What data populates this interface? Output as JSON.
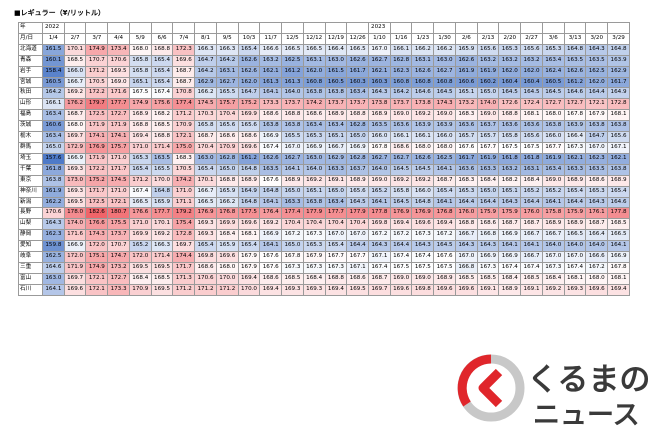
{
  "header": {
    "title": "■レギュラー（¥/リットル）",
    "year_label": "年",
    "date_label": "月/日"
  },
  "table": {
    "columns": [
      {
        "year": "2022",
        "date": "1/4"
      },
      {
        "date": "2/7"
      },
      {
        "date": "3/7"
      },
      {
        "date": "4/4"
      },
      {
        "date": "5/9"
      },
      {
        "date": "6/6"
      },
      {
        "date": "7/4"
      },
      {
        "date": "8/1"
      },
      {
        "date": "9/5"
      },
      {
        "date": "10/3"
      },
      {
        "date": "11/7"
      },
      {
        "date": "12/5"
      },
      {
        "date": "12/12"
      },
      {
        "date": "12/19"
      },
      {
        "date": "12/26"
      },
      {
        "year": "2023",
        "date": "1/10"
      },
      {
        "date": "1/16"
      },
      {
        "date": "1/23"
      },
      {
        "date": "1/30"
      },
      {
        "date": "2/6"
      },
      {
        "date": "2/13"
      },
      {
        "date": "2/20"
      },
      {
        "date": "2/27"
      },
      {
        "date": "3/6"
      },
      {
        "date": "3/13"
      },
      {
        "date": "3/20"
      },
      {
        "date": "3/29"
      }
    ],
    "rows": [
      {
        "name": "北海道",
        "values": [
          "161.5",
          "170.1",
          "174.9",
          "173.4",
          "168.0",
          "168.8",
          "172.3",
          "166.3",
          "166.3",
          "165.4",
          "166.6",
          "166.5",
          "166.5",
          "166.4",
          "166.5",
          "167.0",
          "166.1",
          "166.2",
          "166.2",
          "165.9",
          "165.6",
          "165.3",
          "165.6",
          "165.3",
          "164.8",
          "164.3",
          "164.8"
        ]
      },
      {
        "name": "青森",
        "values": [
          "160.1",
          "168.5",
          "170.7",
          "170.6",
          "165.8",
          "165.4",
          "169.6",
          "164.7",
          "164.2",
          "162.6",
          "163.2",
          "162.5",
          "163.1",
          "163.0",
          "162.6",
          "162.7",
          "162.8",
          "163.1",
          "163.0",
          "162.6",
          "163.2",
          "163.2",
          "163.2",
          "163.4",
          "163.5",
          "163.5",
          "163.9"
        ]
      },
      {
        "name": "岩手",
        "values": [
          "158.4",
          "166.0",
          "171.2",
          "169.5",
          "165.8",
          "165.4",
          "168.7",
          "164.2",
          "163.1",
          "162.6",
          "162.1",
          "161.2",
          "162.0",
          "161.5",
          "161.7",
          "162.1",
          "162.3",
          "162.6",
          "162.7",
          "161.9",
          "161.9",
          "162.0",
          "162.0",
          "162.4",
          "162.6",
          "162.5",
          "162.9"
        ]
      },
      {
        "name": "宮城",
        "values": [
          "160.5",
          "166.7",
          "170.5",
          "169.0",
          "165.1",
          "165.4",
          "168.7",
          "162.9",
          "162.7",
          "162.0",
          "161.3",
          "161.3",
          "160.8",
          "160.5",
          "160.3",
          "160.3",
          "160.8",
          "160.8",
          "160.8",
          "160.6",
          "160.2",
          "160.4",
          "160.4",
          "160.5",
          "161.2",
          "162.0",
          "161.7"
        ]
      },
      {
        "name": "秋田",
        "values": [
          "164.2",
          "169.2",
          "172.2",
          "171.6",
          "167.5",
          "167.4",
          "170.8",
          "166.2",
          "165.5",
          "164.7",
          "164.1",
          "164.0",
          "163.8",
          "163.8",
          "163.4",
          "164.3",
          "164.2",
          "164.6",
          "164.5",
          "165.1",
          "165.0",
          "164.5",
          "164.5",
          "164.5",
          "164.6",
          "164.4",
          "164.9"
        ]
      },
      {
        "name": "山形",
        "values": [
          "166.1",
          "176.2",
          "179.7",
          "177.7",
          "174.9",
          "175.6",
          "177.4",
          "174.5",
          "175.7",
          "175.2",
          "173.3",
          "173.7",
          "174.2",
          "173.7",
          "173.7",
          "173.8",
          "173.7",
          "173.8",
          "174.3",
          "173.2",
          "174.0",
          "172.6",
          "172.4",
          "172.7",
          "172.7",
          "172.1",
          "172.8"
        ]
      },
      {
        "name": "福島",
        "values": [
          "163.4",
          "168.7",
          "172.5",
          "172.7",
          "168.9",
          "168.2",
          "171.2",
          "170.3",
          "170.4",
          "169.9",
          "168.6",
          "168.8",
          "168.6",
          "168.9",
          "168.8",
          "168.9",
          "169.0",
          "169.2",
          "169.0",
          "168.3",
          "169.0",
          "168.8",
          "168.1",
          "168.0",
          "167.8",
          "167.9",
          "168.1"
        ]
      },
      {
        "name": "茨城",
        "values": [
          "160.6",
          "168.0",
          "171.9",
          "171.9",
          "168.8",
          "168.5",
          "170.9",
          "165.8",
          "165.6",
          "165.6",
          "163.8",
          "163.8",
          "163.4",
          "163.4",
          "162.8",
          "163.5",
          "163.6",
          "163.9",
          "163.9",
          "163.6",
          "163.7",
          "163.6",
          "163.6",
          "163.8",
          "163.9",
          "163.8",
          "163.8"
        ]
      },
      {
        "name": "栃木",
        "values": [
          "163.4",
          "169.7",
          "174.1",
          "174.1",
          "169.4",
          "168.8",
          "172.1",
          "168.7",
          "168.6",
          "168.6",
          "166.9",
          "165.5",
          "165.3",
          "165.1",
          "165.0",
          "166.0",
          "166.1",
          "166.1",
          "166.0",
          "165.7",
          "165.7",
          "165.8",
          "165.6",
          "166.0",
          "166.4",
          "164.7",
          "165.6"
        ]
      },
      {
        "name": "群馬",
        "values": [
          "165.0",
          "172.9",
          "176.9",
          "175.7",
          "171.0",
          "171.4",
          "175.0",
          "170.4",
          "170.9",
          "169.6",
          "167.4",
          "167.0",
          "166.9",
          "166.7",
          "166.9",
          "167.8",
          "168.6",
          "168.0",
          "168.0",
          "167.6",
          "167.7",
          "167.5",
          "167.5",
          "167.7",
          "167.3",
          "167.0",
          "167.1"
        ]
      },
      {
        "name": "埼玉",
        "values": [
          "157.6",
          "166.9",
          "171.9",
          "171.0",
          "165.3",
          "163.5",
          "168.3",
          "163.0",
          "162.8",
          "161.2",
          "162.6",
          "162.7",
          "163.0",
          "162.9",
          "162.8",
          "162.7",
          "162.7",
          "162.6",
          "162.5",
          "161.7",
          "161.9",
          "161.8",
          "161.8",
          "161.9",
          "162.1",
          "162.3",
          "162.1"
        ]
      },
      {
        "name": "千葉",
        "values": [
          "161.8",
          "169.3",
          "172.2",
          "171.7",
          "165.4",
          "165.5",
          "170.5",
          "165.4",
          "165.0",
          "164.8",
          "163.5",
          "164.1",
          "164.0",
          "163.3",
          "163.7",
          "164.0",
          "164.5",
          "164.5",
          "164.1",
          "163.6",
          "163.3",
          "163.2",
          "163.1",
          "163.4",
          "163.3",
          "163.5",
          "163.8"
        ]
      },
      {
        "name": "東京",
        "values": [
          "163.8",
          "173.0",
          "175.2",
          "174.5",
          "171.2",
          "170.0",
          "174.2",
          "170.1",
          "168.8",
          "168.9",
          "167.6",
          "168.9",
          "169.2",
          "169.1",
          "168.9",
          "169.0",
          "169.2",
          "169.2",
          "168.7",
          "168.3",
          "168.4",
          "168.2",
          "168.4",
          "169.0",
          "168.9",
          "168.6",
          "168.9"
        ]
      },
      {
        "name": "神奈川",
        "values": [
          "161.9",
          "169.3",
          "171.7",
          "171.0",
          "167.4",
          "164.8",
          "171.0",
          "166.7",
          "165.9",
          "164.9",
          "164.8",
          "165.0",
          "165.1",
          "165.0",
          "165.6",
          "165.2",
          "165.8",
          "166.0",
          "165.4",
          "165.3",
          "165.0",
          "165.1",
          "165.2",
          "165.2",
          "165.4",
          "165.3",
          "165.4"
        ]
      },
      {
        "name": "新潟",
        "values": [
          "162.2",
          "169.5",
          "172.5",
          "172.1",
          "166.5",
          "165.9",
          "171.1",
          "166.5",
          "166.2",
          "164.8",
          "164.1",
          "163.3",
          "163.8",
          "163.4",
          "164.5",
          "164.1",
          "164.5",
          "164.8",
          "164.1",
          "164.4",
          "164.4",
          "164.3",
          "164.4",
          "164.1",
          "164.4",
          "164.3",
          "164.6"
        ]
      },
      {
        "name": "長野",
        "values": [
          "170.6",
          "178.0",
          "182.6",
          "180.7",
          "176.6",
          "177.7",
          "179.2",
          "176.9",
          "176.8",
          "177.5",
          "176.4",
          "177.4",
          "177.9",
          "177.7",
          "177.9",
          "177.8",
          "176.9",
          "176.9",
          "176.8",
          "176.0",
          "175.9",
          "175.9",
          "176.0",
          "175.8",
          "175.9",
          "176.1",
          "177.8"
        ]
      },
      {
        "name": "山梨",
        "values": [
          "164.3",
          "174.0",
          "176.6",
          "175.5",
          "171.0",
          "170.1",
          "175.4",
          "169.3",
          "169.9",
          "169.6",
          "169.2",
          "170.4",
          "170.4",
          "170.4",
          "170.4",
          "169.8",
          "169.4",
          "169.6",
          "169.4",
          "168.8",
          "168.6",
          "168.7",
          "168.7",
          "168.9",
          "168.9",
          "168.7",
          "168.5"
        ]
      },
      {
        "name": "静岡",
        "values": [
          "162.3",
          "171.6",
          "174.3",
          "173.7",
          "169.9",
          "169.2",
          "172.8",
          "169.3",
          "168.4",
          "168.1",
          "166.9",
          "167.2",
          "167.3",
          "167.0",
          "167.0",
          "167.2",
          "167.2",
          "167.3",
          "167.2",
          "166.7",
          "166.8",
          "166.9",
          "166.7",
          "166.7",
          "166.5",
          "166.4",
          "166.5"
        ]
      },
      {
        "name": "愛知",
        "values": [
          "159.8",
          "166.9",
          "172.0",
          "170.7",
          "165.2",
          "166.3",
          "169.7",
          "165.4",
          "165.9",
          "165.4",
          "164.1",
          "165.0",
          "165.3",
          "165.4",
          "164.4",
          "164.3",
          "164.4",
          "164.3",
          "164.5",
          "164.3",
          "164.3",
          "164.1",
          "164.1",
          "164.0",
          "164.0",
          "164.0",
          "164.1"
        ]
      },
      {
        "name": "岐阜",
        "values": [
          "162.5",
          "172.0",
          "175.1",
          "174.7",
          "172.0",
          "171.4",
          "174.4",
          "169.8",
          "169.6",
          "167.9",
          "167.6",
          "167.8",
          "167.9",
          "167.7",
          "167.7",
          "167.1",
          "167.4",
          "167.4",
          "167.6",
          "167.0",
          "166.9",
          "166.9",
          "166.7",
          "167.0",
          "167.0",
          "166.6",
          "166.9"
        ]
      },
      {
        "name": "三重",
        "values": [
          "164.6",
          "171.9",
          "174.9",
          "173.2",
          "169.5",
          "169.5",
          "171.7",
          "168.6",
          "168.0",
          "167.9",
          "167.6",
          "167.3",
          "167.3",
          "167.3",
          "167.1",
          "167.4",
          "167.5",
          "167.5",
          "167.5",
          "166.8",
          "167.3",
          "167.4",
          "167.4",
          "167.3",
          "167.4",
          "167.2",
          "167.8"
        ]
      },
      {
        "name": "富山",
        "values": [
          "163.0",
          "169.7",
          "172.1",
          "172.7",
          "168.4",
          "168.5",
          "171.3",
          "170.6",
          "170.0",
          "169.4",
          "168.6",
          "168.5",
          "168.4",
          "168.8",
          "168.6",
          "168.7",
          "169.0",
          "169.0",
          "168.9",
          "168.5",
          "168.5",
          "168.4",
          "168.5",
          "168.4",
          "168.1",
          "168.0",
          "168.1"
        ]
      },
      {
        "name": "石川",
        "values": [
          "164.1",
          "169.6",
          "172.1",
          "173.3",
          "170.9",
          "169.5",
          "171.2",
          "171.2",
          "171.2",
          "170.0",
          "169.4",
          "169.3",
          "169.3",
          "169.4",
          "169.5",
          "169.7",
          "169.6",
          "169.8",
          "169.6",
          "169.6",
          "169.1",
          "168.9",
          "169.1",
          "169.2",
          "169.3",
          "169.6",
          "169.4"
        ]
      }
    ]
  },
  "logo": {
    "line1": "くるまの",
    "line2": "ニュース"
  }
}
